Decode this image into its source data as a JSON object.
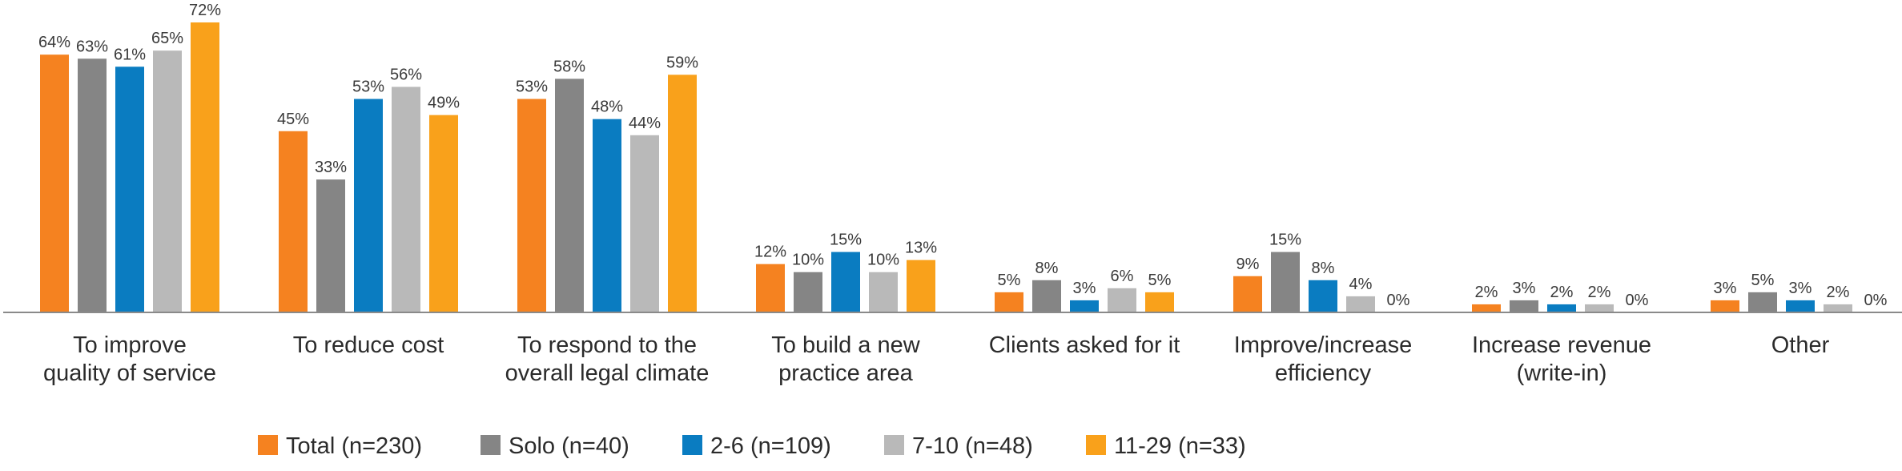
{
  "chart_data": {
    "type": "bar",
    "categories": [
      [
        "To improve",
        "quality of service"
      ],
      [
        "To reduce cost"
      ],
      [
        "To respond to the",
        "overall legal climate"
      ],
      [
        "To build a new",
        "practice area"
      ],
      [
        "Clients asked for it"
      ],
      [
        "Improve/increase",
        "efficiency"
      ],
      [
        "Increase revenue",
        "(write-in)"
      ],
      [
        "Other"
      ]
    ],
    "series": [
      {
        "name": "Total (n=230)",
        "color": "#f58220",
        "values": [
          64,
          45,
          53,
          12,
          5,
          9,
          2,
          3
        ]
      },
      {
        "name": "Solo (n=40)",
        "color": "#858585",
        "values": [
          63,
          33,
          58,
          10,
          8,
          15,
          3,
          5
        ]
      },
      {
        "name": "2-6 (n=109)",
        "color": "#0a7cc1",
        "values": [
          61,
          53,
          48,
          15,
          3,
          8,
          2,
          3
        ]
      },
      {
        "name": "7-10 (n=48)",
        "color": "#b9b9b9",
        "values": [
          65,
          56,
          44,
          10,
          6,
          4,
          2,
          2
        ]
      },
      {
        "name": "11-29 (n=33)",
        "color": "#f9a11b",
        "values": [
          72,
          49,
          59,
          13,
          5,
          0,
          0,
          0
        ]
      }
    ],
    "value_suffix": "%",
    "ylim": [
      0,
      72
    ],
    "grid": false,
    "legend_position": "bottom-center",
    "xlabel": "",
    "ylabel": "",
    "title": ""
  }
}
